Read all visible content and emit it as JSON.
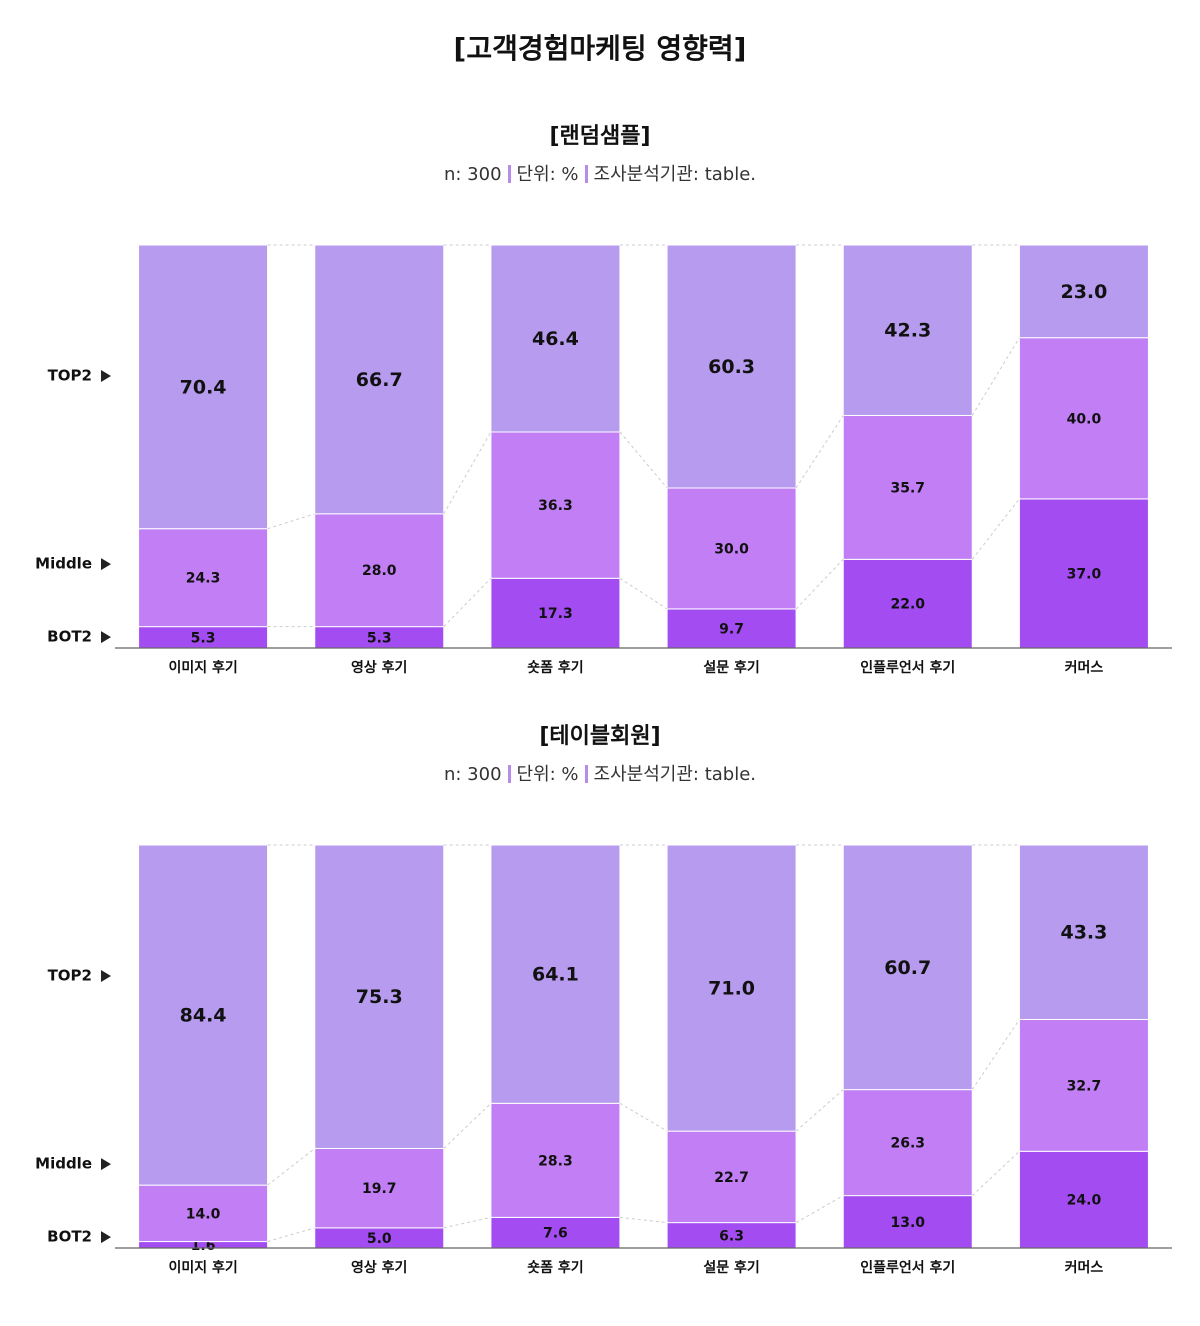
{
  "title": "[고객경험마케팅 영향력]",
  "chart_data": [
    {
      "type": "stacked_bar",
      "title": "[랜덤샘플]",
      "subtitle": [
        "n: 300",
        "단위: %",
        "조사분석기관: table."
      ],
      "categories": [
        "이미지 후기",
        "영상 후기",
        "숏폼 후기",
        "설문 후기",
        "인플루언서 후기",
        "커머스"
      ],
      "ylim": [
        0,
        100
      ],
      "series": [
        {
          "name": "BOT2",
          "color": "#a34cf2",
          "values": [
            5.3,
            5.3,
            17.3,
            9.7,
            22.0,
            37.0
          ],
          "value_labels": [
            "5.3",
            "5.3",
            "17.3",
            "9.7",
            "22.0",
            "37.0"
          ]
        },
        {
          "name": "Middle",
          "color": "#c17ef5",
          "values": [
            24.3,
            28.0,
            36.3,
            30.0,
            35.7,
            40.0
          ],
          "value_labels": [
            "24.3",
            "28.0",
            "36.3",
            "30.0",
            "35.7",
            "40.0"
          ]
        },
        {
          "name": "TOP2",
          "color": "#b69bee",
          "values": [
            70.4,
            66.7,
            46.4,
            60.3,
            42.3,
            23.0
          ],
          "value_labels": [
            "70.4",
            "66.7",
            "46.4",
            "60.3",
            "42.3",
            "23.0"
          ]
        }
      ]
    },
    {
      "type": "stacked_bar",
      "title": "[테이블회원]",
      "subtitle": [
        "n: 300",
        "단위: %",
        "조사분석기관: table."
      ],
      "categories": [
        "이미지 후기",
        "영상 후기",
        "숏폼 후기",
        "설문 후기",
        "인플루언서 후기",
        "커머스"
      ],
      "ylim": [
        0,
        100
      ],
      "series": [
        {
          "name": "BOT2",
          "color": "#a34cf2",
          "values": [
            1.6,
            5.0,
            7.6,
            6.3,
            13.0,
            24.0
          ],
          "value_labels": [
            "1.6",
            "5.0",
            "7.6",
            "6.3",
            "13.0",
            "24.0"
          ]
        },
        {
          "name": "Middle",
          "color": "#c17ef5",
          "values": [
            14.0,
            19.7,
            28.3,
            22.7,
            26.3,
            32.7
          ],
          "value_labels": [
            "14.0",
            "19.7",
            "28.3",
            "22.7",
            "26.3",
            "32.7"
          ]
        },
        {
          "name": "TOP2",
          "color": "#b69bee",
          "values": [
            84.4,
            75.3,
            64.1,
            71.0,
            60.7,
            43.3
          ],
          "value_labels": [
            "84.4",
            "75.3",
            "64.1",
            "71.0",
            "60.7",
            "43.3"
          ]
        }
      ]
    }
  ]
}
